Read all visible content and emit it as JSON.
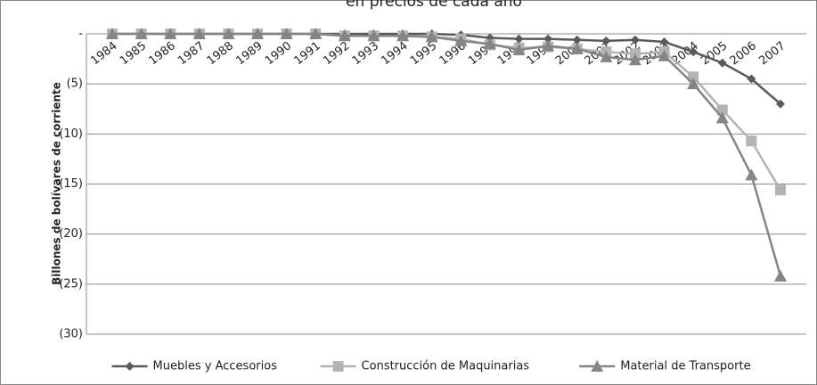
{
  "chart_data": {
    "type": "line",
    "title": "en precios de cada año",
    "y_label": "Billones de bolívares de corriente",
    "categories": [
      "1984",
      "1985",
      "1986",
      "1987",
      "1988",
      "1989",
      "1990",
      "1991",
      "1992",
      "1993",
      "1994",
      "1995",
      "1996",
      "1997",
      "1998",
      "1999",
      "2000",
      "2001",
      "2002",
      "2003",
      "2004",
      "2005",
      "2006",
      "2007"
    ],
    "series": [
      {
        "name": "Muebles y Accesorios",
        "color": "#5a5a5a",
        "marker": "diamond",
        "values": [
          0,
          0,
          0,
          0,
          0,
          0,
          0,
          0,
          0,
          0,
          0,
          0,
          -0.1,
          -0.4,
          -0.5,
          -0.5,
          -0.6,
          -0.7,
          -0.6,
          -0.8,
          -1.8,
          -2.9,
          -4.5,
          -7.0
        ]
      },
      {
        "name": "Construcción de Maquinarias",
        "color": "#b3b3b3",
        "marker": "square",
        "values": [
          0,
          0,
          0,
          0,
          0,
          0,
          0,
          0,
          -0.2,
          -0.2,
          -0.2,
          -0.3,
          -0.5,
          -1.1,
          -1.4,
          -1.3,
          -1.5,
          -1.8,
          -2.0,
          -1.8,
          -4.3,
          -7.6,
          -10.7,
          -15.6
        ]
      },
      {
        "name": "Material de Transporte",
        "color": "#858585",
        "marker": "triangle",
        "values": [
          0,
          0,
          0,
          0,
          0,
          0,
          0,
          0,
          -0.2,
          -0.2,
          -0.2,
          -0.3,
          -0.7,
          -1.0,
          -1.6,
          -1.2,
          -1.5,
          -2.3,
          -2.6,
          -2.2,
          -5.0,
          -8.4,
          -14.1,
          -24.2
        ]
      }
    ],
    "ylim": [
      -30,
      0
    ],
    "yticks": [
      {
        "value": 0,
        "label": "-"
      },
      {
        "value": -5,
        "label": "(5)"
      },
      {
        "value": -10,
        "label": "(10)"
      },
      {
        "value": -15,
        "label": "(15)"
      },
      {
        "value": -20,
        "label": "(20)"
      },
      {
        "value": -25,
        "label": "(25)"
      },
      {
        "value": -30,
        "label": "(30)"
      }
    ],
    "grid": true,
    "legend": "bottom"
  }
}
